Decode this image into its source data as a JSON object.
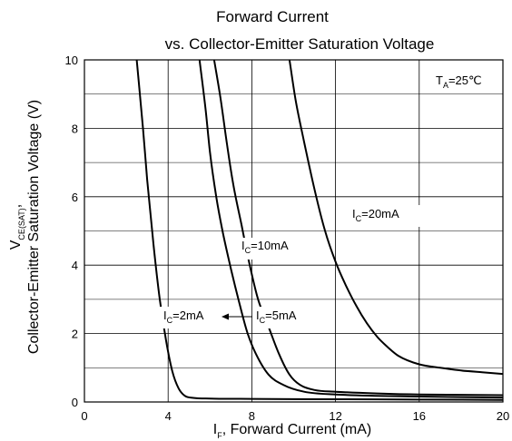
{
  "chart_data": {
    "type": "line",
    "title_line1": "Forward Current",
    "title_line2": "vs. Collector-Emitter Saturation Voltage",
    "xlabel": {
      "symbol": "I",
      "sub": "F",
      "text": ", Forward Current (mA)"
    },
    "ylabel_line1": {
      "symbol": "V",
      "sub": "CE(SAT)",
      "text": ","
    },
    "ylabel_line2": "Collector-Emitter Saturation Voltage (V)",
    "xlim": [
      0,
      20
    ],
    "ylim": [
      0,
      10
    ],
    "xticks": [
      "0",
      "4",
      "8",
      "12",
      "16",
      "20"
    ],
    "yticks": [
      "0",
      "2",
      "4",
      "6",
      "8",
      "10"
    ],
    "grid": true,
    "ambient": {
      "symbol": "T",
      "sub": "A",
      "text": "=25℃"
    },
    "series": [
      {
        "name": "IC=2mA",
        "label": {
          "symbol": "I",
          "sub": "C",
          "text": "=2mA"
        },
        "x": [
          2.5,
          2.8,
          3.0,
          3.3,
          3.6,
          3.9,
          4.2,
          4.5,
          4.8,
          5.2,
          6.0,
          8.0,
          12.0,
          16.0,
          20.0
        ],
        "y": [
          10.0,
          8.0,
          6.5,
          4.6,
          3.0,
          1.8,
          0.9,
          0.4,
          0.18,
          0.12,
          0.1,
          0.09,
          0.08,
          0.07,
          0.06
        ]
      },
      {
        "name": "IC=5mA",
        "label": {
          "symbol": "I",
          "sub": "C",
          "text": "=5mA"
        },
        "x": [
          5.5,
          5.8,
          6.0,
          6.3,
          6.6,
          7.0,
          7.4,
          7.8,
          8.2,
          8.8,
          9.5,
          10.5,
          12.0,
          16.0,
          20.0
        ],
        "y": [
          10.0,
          8.5,
          7.3,
          6.0,
          5.0,
          3.9,
          2.9,
          2.0,
          1.4,
          0.8,
          0.5,
          0.3,
          0.22,
          0.16,
          0.13
        ]
      },
      {
        "name": "IC=10mA",
        "label": {
          "symbol": "I",
          "sub": "C",
          "text": "=10mA"
        },
        "x": [
          6.2,
          6.5,
          6.8,
          7.1,
          7.5,
          7.9,
          8.3,
          8.8,
          9.3,
          9.8,
          10.3,
          11.0,
          12.0,
          14.0,
          16.0,
          20.0
        ],
        "y": [
          10.0,
          8.9,
          7.6,
          6.4,
          5.2,
          4.0,
          3.0,
          2.2,
          1.4,
          0.8,
          0.5,
          0.35,
          0.3,
          0.25,
          0.22,
          0.2
        ]
      },
      {
        "name": "IC=20mA",
        "label": {
          "symbol": "I",
          "sub": "C",
          "text": "=20mA"
        },
        "x": [
          9.8,
          10.1,
          10.5,
          11.0,
          11.5,
          12.0,
          12.5,
          13.0,
          13.5,
          14.0,
          14.5,
          15.0,
          16.0,
          17.0,
          18.0,
          19.0,
          20.0
        ],
        "y": [
          10.0,
          8.8,
          7.6,
          6.2,
          5.0,
          4.1,
          3.4,
          2.8,
          2.3,
          1.9,
          1.6,
          1.35,
          1.1,
          1.0,
          0.92,
          0.87,
          0.82
        ]
      }
    ]
  }
}
